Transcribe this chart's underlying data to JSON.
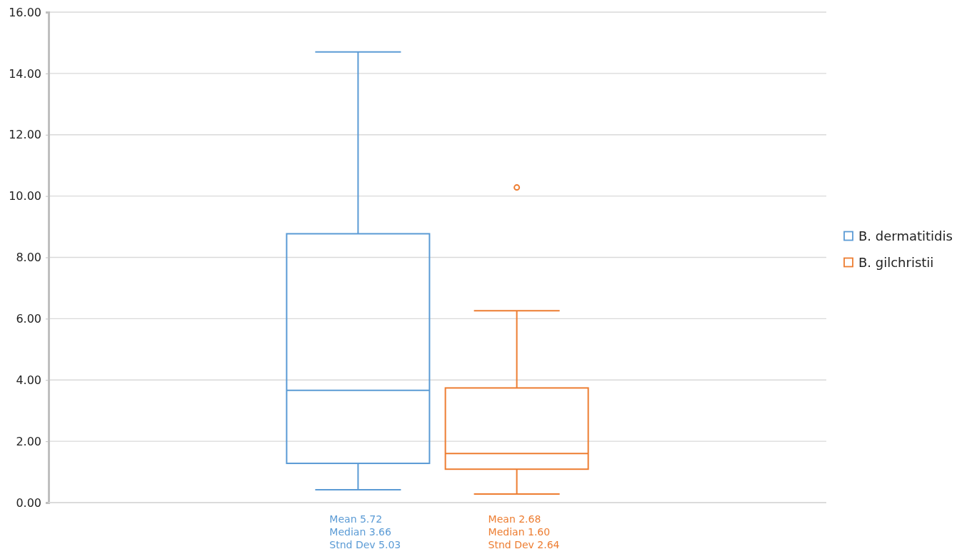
{
  "chart_data": {
    "type": "box",
    "categories": [
      null
    ],
    "series": [
      {
        "name": "B. dermatitidis",
        "color": "#5b9bd5",
        "boxes": [
          {
            "low": 0.42,
            "q1": 1.28,
            "median": 3.66,
            "q3": 8.77,
            "high": 14.7
          }
        ]
      },
      {
        "name": "B. gilchristii",
        "color": "#ed7d31",
        "boxes": [
          {
            "low": 0.28,
            "q1": 1.09,
            "median": 1.6,
            "q3": 3.74,
            "high": 6.26,
            "outliers": [
              10.28
            ]
          }
        ]
      }
    ],
    "ylim": [
      0,
      16
    ],
    "yticks": [
      {
        "value": 0,
        "label": "0.00"
      },
      {
        "value": 2,
        "label": "2.00"
      },
      {
        "value": 4,
        "label": "4.00"
      },
      {
        "value": 6,
        "label": "6.00"
      },
      {
        "value": 8,
        "label": "8.00"
      },
      {
        "value": 10,
        "label": "10.00"
      },
      {
        "value": 12,
        "label": "12.00"
      },
      {
        "value": 14,
        "label": "14.00"
      },
      {
        "value": 16,
        "label": "16.00"
      }
    ],
    "grid": "y",
    "legend": "right",
    "annotations": [
      "Mean 5.72\nMedian 3.66\nStnd Dev 5.03",
      "Mean 2.68\nMedian 1.60\nStnd Dev 2.64"
    ]
  }
}
